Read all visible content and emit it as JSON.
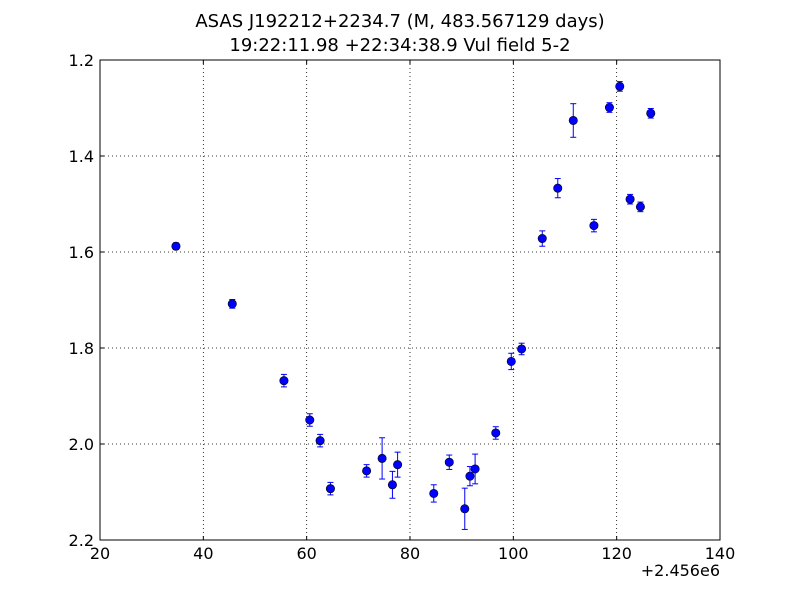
{
  "chart_data": {
    "type": "scatter",
    "title": "ASAS J192212+2234.7 (M, 483.567129 days)",
    "subtitle": "19:22:11.98 +22:34:38.9 Vul field 5-2",
    "xlabel": "",
    "ylabel": "",
    "x_offset_label": "+2.456e6",
    "xlim": [
      20,
      140
    ],
    "ylim": [
      1.2,
      2.2
    ],
    "y_inverted": true,
    "grid": true,
    "marker_color": "#0000ff",
    "x_ticks": [
      "20",
      "40",
      "60",
      "80",
      "100",
      "120",
      "140"
    ],
    "y_ticks": [
      "1.2",
      "1.4",
      "1.6",
      "1.8",
      "2.0",
      "2.2"
    ],
    "points": [
      {
        "x": 34.7,
        "y": 1.588,
        "err": 0.007
      },
      {
        "x": 45.6,
        "y": 1.708,
        "err": 0.009
      },
      {
        "x": 55.6,
        "y": 1.868,
        "err": 0.013
      },
      {
        "x": 60.6,
        "y": 1.95,
        "err": 0.013
      },
      {
        "x": 62.6,
        "y": 1.993,
        "err": 0.013
      },
      {
        "x": 64.6,
        "y": 2.093,
        "err": 0.013
      },
      {
        "x": 71.6,
        "y": 2.056,
        "err": 0.013
      },
      {
        "x": 74.6,
        "y": 2.03,
        "err": 0.043
      },
      {
        "x": 76.6,
        "y": 2.085,
        "err": 0.028
      },
      {
        "x": 77.6,
        "y": 2.043,
        "err": 0.026
      },
      {
        "x": 84.6,
        "y": 2.103,
        "err": 0.018
      },
      {
        "x": 87.6,
        "y": 2.038,
        "err": 0.015
      },
      {
        "x": 90.6,
        "y": 2.135,
        "err": 0.043
      },
      {
        "x": 91.6,
        "y": 2.067,
        "err": 0.02
      },
      {
        "x": 92.6,
        "y": 2.052,
        "err": 0.031
      },
      {
        "x": 96.6,
        "y": 1.977,
        "err": 0.013
      },
      {
        "x": 99.6,
        "y": 1.828,
        "err": 0.017
      },
      {
        "x": 101.6,
        "y": 1.802,
        "err": 0.012
      },
      {
        "x": 105.6,
        "y": 1.572,
        "err": 0.016
      },
      {
        "x": 108.6,
        "y": 1.467,
        "err": 0.02
      },
      {
        "x": 111.6,
        "y": 1.326,
        "err": 0.035
      },
      {
        "x": 115.6,
        "y": 1.545,
        "err": 0.013
      },
      {
        "x": 118.6,
        "y": 1.299,
        "err": 0.01
      },
      {
        "x": 120.6,
        "y": 1.255,
        "err": 0.01
      },
      {
        "x": 122.6,
        "y": 1.49,
        "err": 0.01
      },
      {
        "x": 124.6,
        "y": 1.506,
        "err": 0.01
      },
      {
        "x": 126.6,
        "y": 1.311,
        "err": 0.01
      }
    ]
  }
}
